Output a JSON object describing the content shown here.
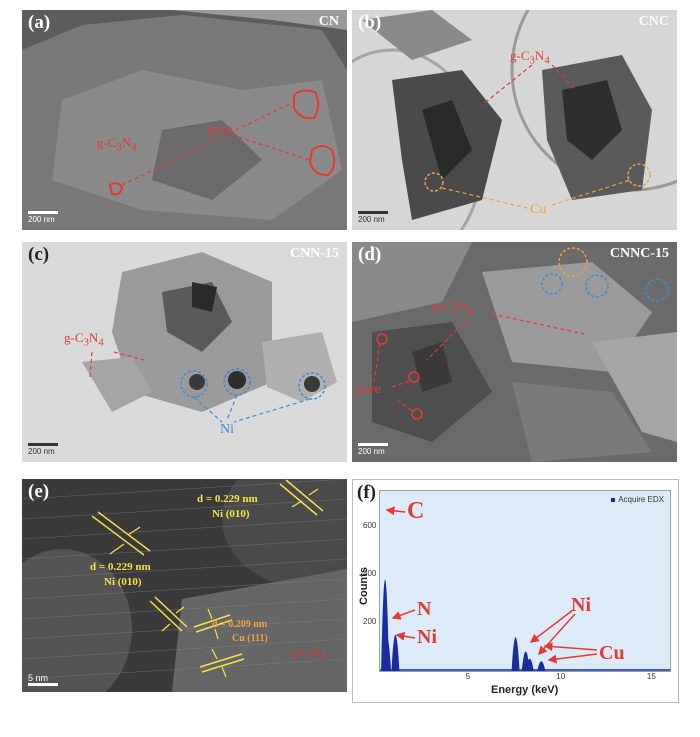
{
  "panels": {
    "a": {
      "label": "(a)",
      "title": "CN",
      "scale": "200 nm",
      "ann_material": "g-C3N4",
      "ann_pore": "pore"
    },
    "b": {
      "label": "(b)",
      "title": "CNC",
      "scale": "200 nm",
      "ann_material": "g-C3N4",
      "ann_cu": "Cu"
    },
    "c": {
      "label": "(c)",
      "title": "CNN-15",
      "scale": "200 nm",
      "ann_material": "g-C3N4",
      "ann_ni": "Ni"
    },
    "d": {
      "label": "(d)",
      "title": "CNNC-15",
      "scale": "200 nm",
      "ann_material": "g-C3N4",
      "ann_pore": "pore"
    },
    "e": {
      "label": "(e)",
      "scale": "5 nm",
      "fringe1": "d = 0.229 nm",
      "fringe1_plane": "Ni (010)",
      "fringe2": "d = 0.229 nm",
      "fringe2_plane": "Ni (010)",
      "fringe3": "d = 0.209 nm",
      "fringe3_plane": "Cu (111)",
      "ann_material": "g-C3N4"
    },
    "f": {
      "label": "(f)",
      "legend": "Acquire EDX",
      "ylabel": "Counts",
      "xlabel": "Energy (keV)",
      "peak_labels": {
        "c": "C",
        "n": "N",
        "ni_low": "Ni",
        "ni_high": "Ni",
        "cu": "Cu"
      }
    }
  },
  "chart_data": {
    "type": "line",
    "title": "",
    "xlabel": "Energy (keV)",
    "ylabel": "Counts",
    "xlim": [
      0,
      16
    ],
    "ylim": [
      0,
      750
    ],
    "xticks": [
      5,
      10,
      15
    ],
    "yticks": [
      200,
      400,
      600
    ],
    "legend": "top-right",
    "series": [
      {
        "name": "Acquire EDX",
        "x": [
          0.28,
          0.39,
          0.85,
          7.48,
          8.04,
          8.26,
          8.9
        ],
        "y": [
          720,
          230,
          260,
          240,
          120,
          60,
          40
        ]
      }
    ],
    "peak_annotations": [
      "C",
      "N",
      "Ni",
      "Ni",
      "Cu"
    ]
  },
  "colors": {
    "annotation_red": "#e53935",
    "annotation_blue": "#3d8bd6",
    "annotation_orange": "#f0a040",
    "fringe_yellow": "#f5e24a",
    "edx_bg": "#dcebf7",
    "edx_peak": "#1b2a9c"
  }
}
